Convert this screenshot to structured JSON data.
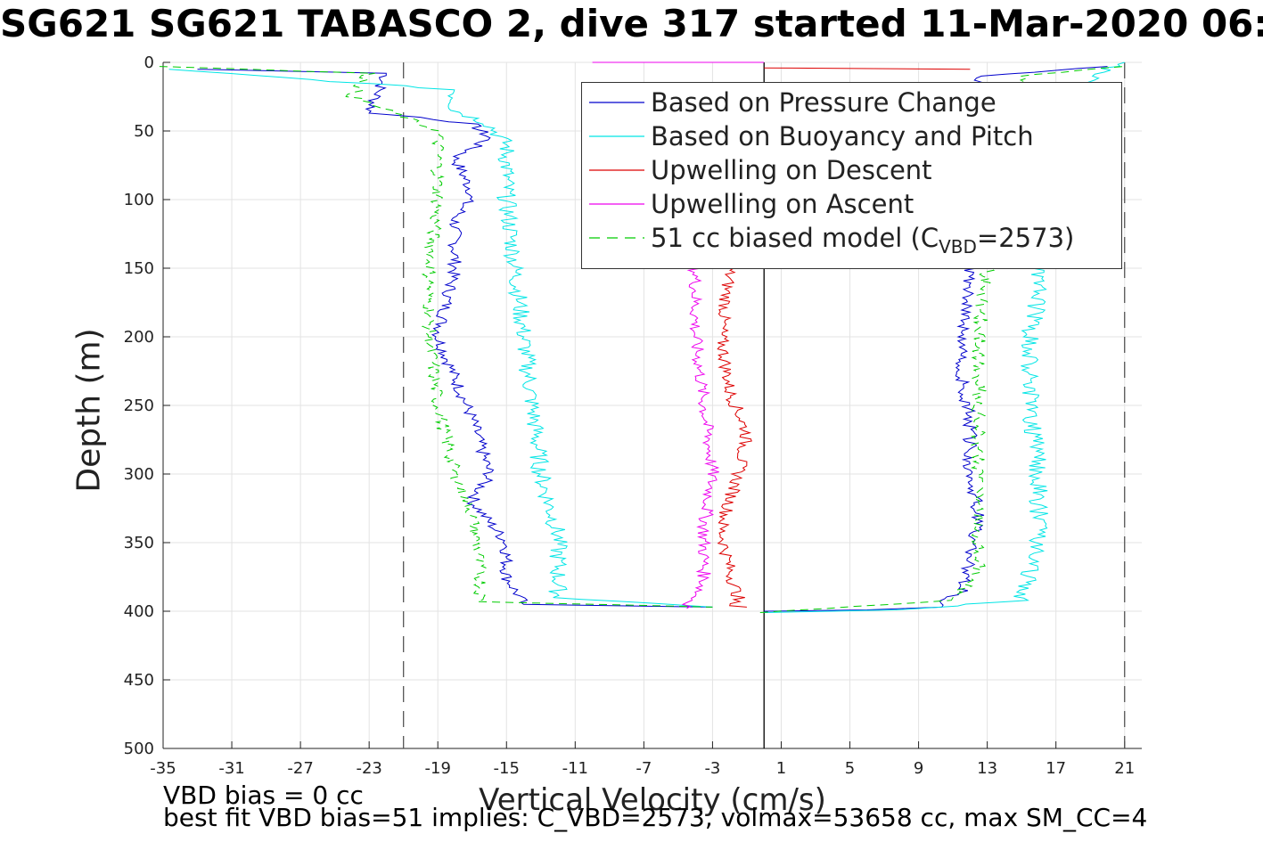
{
  "title": "SG621 SG621 TABASCO 2, dive 317 started 11-Mar-2020 06:",
  "chart_data": {
    "type": "line",
    "xlabel": "Vertical Velocity (cm/s)",
    "ylabel": "Depth (m)",
    "xlim": [
      -35,
      22
    ],
    "ylim": [
      0,
      500
    ],
    "y_reversed": true,
    "grid": true,
    "x_ticks": [
      "-35",
      "-31",
      "-27",
      "-23",
      "-19",
      "-15",
      "-11",
      "-7",
      "-3",
      "1",
      "5",
      "9",
      "13",
      "17",
      "21"
    ],
    "y_ticks": [
      "0",
      "50",
      "100",
      "150",
      "200",
      "250",
      "300",
      "350",
      "400",
      "450",
      "500"
    ],
    "legend_position": "top-right",
    "reference_lines": [
      {
        "x": -21,
        "style": "dashed",
        "color": "#555555"
      },
      {
        "x": 21,
        "style": "dashed",
        "color": "#555555"
      },
      {
        "x": 0,
        "style": "solid",
        "color": "#000000"
      }
    ],
    "series": [
      {
        "name": "Based on Pressure Change",
        "color": "#0000cc",
        "dash": "solid",
        "descent": [
          [
            -33,
            5
          ],
          [
            -22,
            8
          ],
          [
            -23,
            37
          ],
          [
            -20,
            40
          ],
          [
            -17,
            45
          ],
          [
            -16,
            55
          ],
          [
            -18,
            70
          ],
          [
            -17,
            95
          ],
          [
            -18,
            115
          ],
          [
            -18,
            150
          ],
          [
            -19,
            200
          ],
          [
            -18,
            230
          ],
          [
            -17,
            260
          ],
          [
            -16,
            300
          ],
          [
            -17,
            320
          ],
          [
            -15,
            350
          ],
          [
            -15,
            375
          ],
          [
            -14,
            395
          ],
          [
            -3,
            397
          ]
        ],
        "ascent": [
          [
            0,
            400
          ],
          [
            6,
            399
          ],
          [
            10,
            397
          ],
          [
            11.5,
            385
          ],
          [
            12,
            360
          ],
          [
            12.5,
            330
          ],
          [
            12,
            300
          ],
          [
            12,
            260
          ],
          [
            11.5,
            230
          ],
          [
            11.5,
            200
          ],
          [
            12,
            170
          ],
          [
            12,
            150
          ],
          [
            12.5,
            10
          ],
          [
            20,
            3
          ]
        ]
      },
      {
        "name": "Based on Buoyancy and Pitch",
        "color": "#00e5e5",
        "dash": "solid",
        "descent": [
          [
            -35,
            5
          ],
          [
            -18,
            20
          ],
          [
            -18,
            35
          ],
          [
            -16,
            45
          ],
          [
            -15,
            60
          ],
          [
            -15,
            100
          ],
          [
            -14.5,
            150
          ],
          [
            -14,
            200
          ],
          [
            -13.5,
            250
          ],
          [
            -13,
            300
          ],
          [
            -12,
            345
          ],
          [
            -12,
            390
          ],
          [
            -3,
            397
          ]
        ],
        "ascent": [
          [
            0,
            401
          ],
          [
            8,
            399
          ],
          [
            15,
            392
          ],
          [
            15.5,
            370
          ],
          [
            16,
            350
          ],
          [
            16,
            300
          ],
          [
            15.5,
            250
          ],
          [
            15.5,
            200
          ],
          [
            16,
            170
          ],
          [
            16,
            150
          ],
          [
            19,
            10
          ],
          [
            21,
            0
          ]
        ]
      },
      {
        "name": "Upwelling on Descent",
        "color": "#dd0000",
        "dash": "solid",
        "descent": [
          [
            -2,
            150
          ],
          [
            -2.5,
            200
          ],
          [
            -2,
            240
          ],
          [
            -1,
            270
          ],
          [
            -1.5,
            300
          ],
          [
            -2.5,
            340
          ],
          [
            -2,
            370
          ],
          [
            -1.5,
            390
          ],
          [
            -2,
            396
          ],
          [
            -1,
            397
          ]
        ],
        "ascent": [
          [
            12,
            5
          ],
          [
            0,
            4
          ]
        ]
      },
      {
        "name": "Upwelling on Ascent",
        "color": "#ee00ee",
        "dash": "solid",
        "descent": [
          [
            -4,
            150
          ],
          [
            -4,
            200
          ],
          [
            -3.5,
            250
          ],
          [
            -3,
            300
          ],
          [
            -3.5,
            340
          ],
          [
            -3.5,
            380
          ],
          [
            -4.5,
            398
          ]
        ],
        "ascent": [
          [
            -10,
            0
          ],
          [
            0,
            0
          ]
        ]
      },
      {
        "name": "51 cc biased model (C_VBD=2573)",
        "color": "#00cc00",
        "dash": "dashed",
        "descent": [
          [
            -35,
            3
          ],
          [
            -23,
            8
          ],
          [
            -24,
            25
          ],
          [
            -22,
            35
          ],
          [
            -19,
            50
          ],
          [
            -19,
            100
          ],
          [
            -19.5,
            150
          ],
          [
            -19.5,
            200
          ],
          [
            -19,
            250
          ],
          [
            -18,
            300
          ],
          [
            -17,
            330
          ],
          [
            -16.5,
            370
          ],
          [
            -16.5,
            393
          ],
          [
            -3,
            397
          ]
        ],
        "ascent": [
          [
            0,
            401
          ],
          [
            11,
            392
          ],
          [
            12.5,
            370
          ],
          [
            12.5,
            300
          ],
          [
            12.5,
            250
          ],
          [
            12.5,
            200
          ],
          [
            13,
            150
          ],
          [
            15,
            10
          ],
          [
            21,
            3
          ]
        ]
      }
    ]
  },
  "legend": {
    "items": [
      {
        "label": "Based on Pressure Change"
      },
      {
        "label": "Based on Buoyancy and Pitch"
      },
      {
        "label": "Upwelling on Descent"
      },
      {
        "label": "Upwelling on Ascent"
      },
      {
        "label_prefix": "51 cc biased model (C",
        "label_sub": "VBD",
        "label_suffix": "=2573)"
      }
    ]
  },
  "footnotes": {
    "line1": "VBD bias = 0 cc",
    "line2": "best fit VBD bias=51 implies: C_VBD=2573, volmax=53658 cc, max SM_CC=4"
  }
}
